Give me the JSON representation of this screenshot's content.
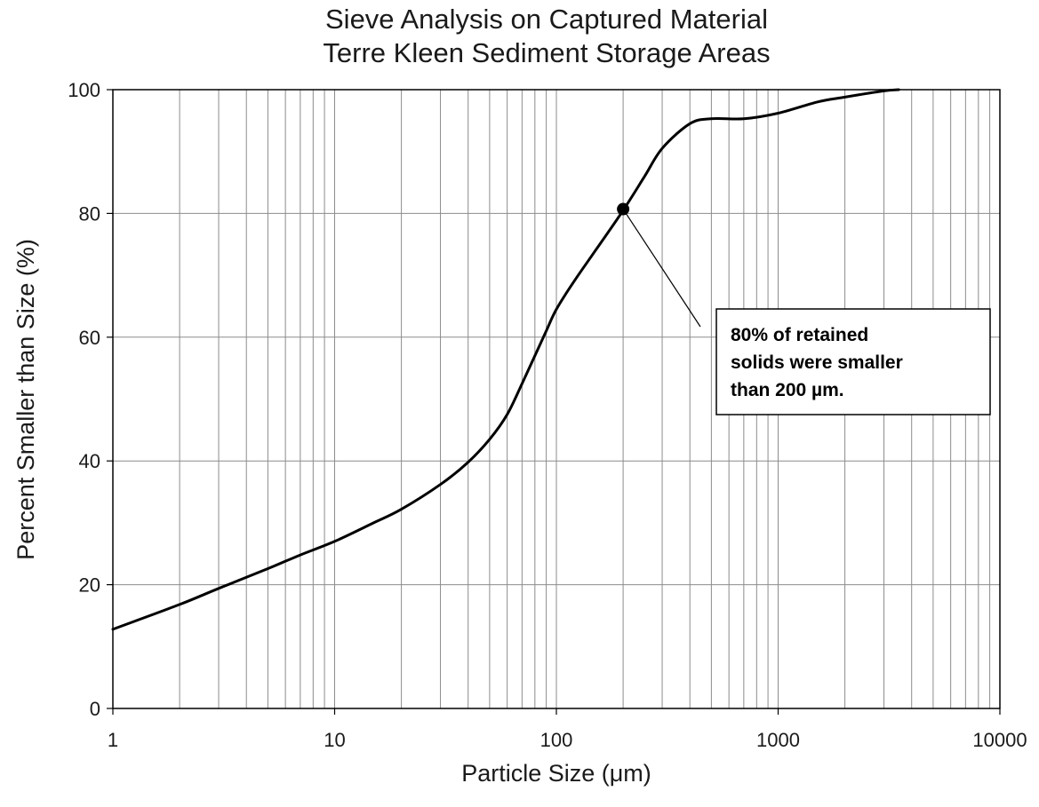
{
  "chart_data": {
    "type": "line",
    "title": "Sieve Analysis on Captured Material",
    "subtitle": "Terre Kleen Sediment Storage Areas",
    "xlabel": "Particle Size (μm)",
    "ylabel": "Percent Smaller than Size (%)",
    "x_scale": "log",
    "xlim": [
      1,
      10000
    ],
    "ylim": [
      0,
      100
    ],
    "x_tick_labels": [
      "1",
      "10",
      "100",
      "1000",
      "10000"
    ],
    "x_ticks": [
      1,
      10,
      100,
      1000,
      10000
    ],
    "y_tick_labels": [
      "0",
      "20",
      "40",
      "60",
      "80",
      "100"
    ],
    "y_ticks": [
      0,
      20,
      40,
      60,
      80,
      100
    ],
    "grid": true,
    "legend": "none",
    "colors": {
      "line": "#000000",
      "grid": "#8c8c8c",
      "background": "#ffffff"
    },
    "series": [
      {
        "x": [
          1,
          2,
          3,
          5,
          7,
          10,
          15,
          20,
          30,
          40,
          50,
          60,
          70,
          80,
          90,
          100,
          120,
          150,
          200,
          250,
          300,
          400,
          500,
          700,
          1000,
          1500,
          2000,
          3000,
          3500
        ],
        "y": [
          12.8,
          16.8,
          19.4,
          22.6,
          24.8,
          27,
          30,
          32.2,
          36.2,
          39.8,
          43.5,
          47.5,
          52.5,
          57,
          61,
          64.5,
          69,
          74,
          80.5,
          86,
          90.5,
          94.5,
          95.3,
          95.3,
          96.2,
          98,
          98.8,
          99.8,
          100
        ]
      }
    ],
    "highlight_point": {
      "x": 200,
      "y": 80.7
    },
    "annotation": {
      "lines": [
        "80% of retained",
        "solids were smaller",
        "than 200 µm."
      ]
    }
  }
}
